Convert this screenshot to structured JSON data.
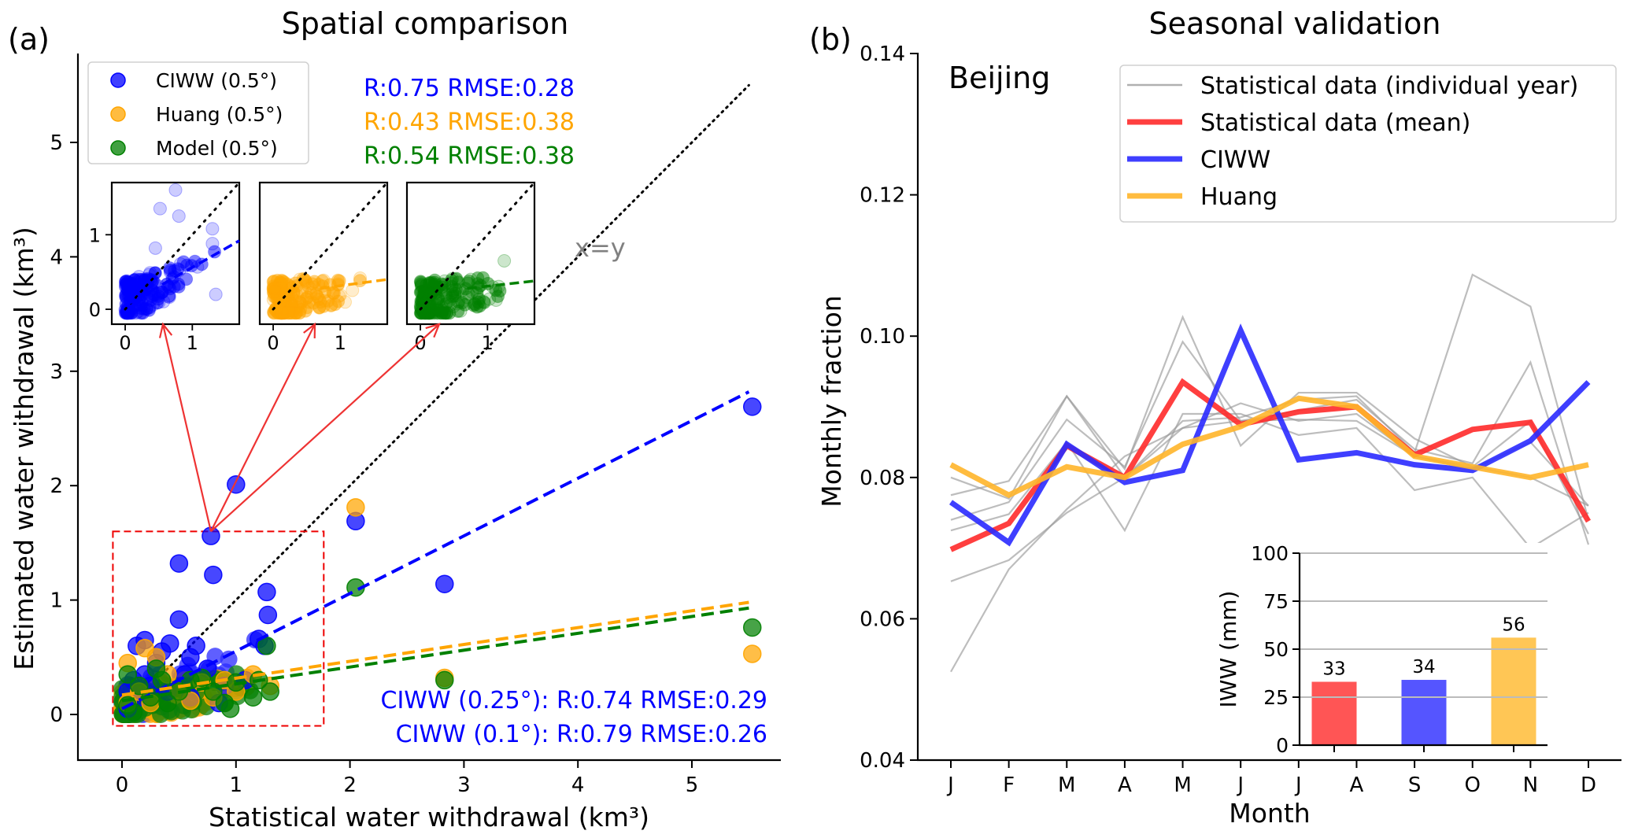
{
  "chart_data": [
    {
      "panel_label": "(a)",
      "type": "scatter",
      "title": "Spatial comparison",
      "xlabel": "Statistical water withdrawal (km³)",
      "ylabel": "Estimated water withdrawal (km³)",
      "xlim": [
        -0.4,
        5.85
      ],
      "ylim": [
        -0.3,
        5.75
      ],
      "xticks": [
        "0",
        "1",
        "2",
        "3",
        "4",
        "5"
      ],
      "yticks": [
        "0",
        "1",
        "2",
        "3",
        "4",
        "5"
      ],
      "legend": {
        "placement": "top-left",
        "entries": [
          {
            "label": "CIWW (0.5°)",
            "color": "#0000ff"
          },
          {
            "label": "Huang (0.5°)",
            "color": "#ffa500"
          },
          {
            "label": "Model (0.5°)",
            "color": "#008000"
          }
        ]
      },
      "stats_top": [
        {
          "text": "R:0.75 RMSE:0.28",
          "color": "#0000ff"
        },
        {
          "text": "R:0.43 RMSE:0.38",
          "color": "#ffa500"
        },
        {
          "text": "R:0.54 RMSE:0.38",
          "color": "#008000"
        }
      ],
      "stats_bottom": [
        {
          "text": "CIWW (0.25°): R:0.74 RMSE:0.29",
          "color": "#0000ff"
        },
        {
          "text": "CIWW (0.1°): R:0.79 RMSE:0.26",
          "color": "#0000ff"
        }
      ],
      "identity_label": "x=y",
      "identity_line": {
        "from": [
          0,
          0
        ],
        "to": [
          5.5,
          5.5
        ]
      },
      "fit_lines": [
        {
          "series": "CIWW",
          "from": [
            0,
            0.05
          ],
          "to": [
            5.5,
            2.82
          ],
          "color": "#0000ff"
        },
        {
          "series": "Huang",
          "from": [
            0,
            0.17
          ],
          "to": [
            5.5,
            0.98
          ],
          "color": "#ffa500"
        },
        {
          "series": "Model",
          "from": [
            0,
            0.12
          ],
          "to": [
            5.5,
            0.93
          ],
          "color": "#008000"
        }
      ],
      "zoom_box": {
        "x": [
          -0.08,
          1.77
        ],
        "y": [
          -0.1,
          1.6
        ]
      },
      "series": [
        {
          "name": "CIWW",
          "color": "#0000ff",
          "points": [
            [
              0.78,
              1.56
            ],
            [
              0.5,
              1.32
            ],
            [
              0.8,
              1.22
            ],
            [
              1.0,
              2.01
            ],
            [
              1.27,
              1.07
            ],
            [
              1.28,
              0.87
            ],
            [
              0.5,
              0.83
            ],
            [
              0.2,
              0.65
            ],
            [
              0.42,
              0.62
            ],
            [
              0.65,
              0.6
            ],
            [
              0.13,
              0.6
            ],
            [
              0.35,
              0.55
            ],
            [
              0.6,
              0.5
            ],
            [
              0.3,
              0.45
            ],
            [
              1.2,
              0.66
            ],
            [
              0.75,
              0.4
            ],
            [
              1.08,
              0.3
            ],
            [
              0.55,
              0.35
            ],
            [
              0.2,
              0.35
            ],
            [
              0.9,
              0.25
            ],
            [
              1.25,
              0.6
            ],
            [
              2.05,
              1.69
            ],
            [
              2.83,
              1.14
            ],
            [
              5.53,
              2.69
            ],
            [
              0.05,
              0.2
            ],
            [
              0.1,
              0.3
            ],
            [
              0.15,
              0.15
            ],
            [
              0.25,
              0.25
            ],
            [
              0.4,
              0.2
            ],
            [
              0.6,
              0.15
            ],
            [
              0.85,
              0.1
            ],
            [
              0.05,
              0.05
            ]
          ]
        },
        {
          "name": "Huang",
          "color": "#ffa500",
          "points": [
            [
              2.05,
              1.81
            ],
            [
              2.83,
              0.32
            ],
            [
              5.53,
              0.53
            ],
            [
              0.2,
              0.58
            ],
            [
              0.3,
              0.5
            ],
            [
              0.05,
              0.45
            ],
            [
              0.4,
              0.35
            ],
            [
              0.7,
              0.28
            ],
            [
              1.0,
              0.2
            ],
            [
              1.3,
              0.25
            ],
            [
              0.6,
              0.12
            ],
            [
              0.9,
              0.3
            ],
            [
              0.15,
              0.2
            ],
            [
              0.5,
              0.2
            ],
            [
              0.25,
              0.1
            ],
            [
              1.15,
              0.35
            ],
            [
              0.8,
              0.15
            ],
            [
              0.05,
              0.1
            ]
          ]
        },
        {
          "name": "Model",
          "color": "#008000",
          "points": [
            [
              2.05,
              1.11
            ],
            [
              2.83,
              0.3
            ],
            [
              5.53,
              0.76
            ],
            [
              1.27,
              0.6
            ],
            [
              0.3,
              0.4
            ],
            [
              0.05,
              0.35
            ],
            [
              0.7,
              0.32
            ],
            [
              1.0,
              0.28
            ],
            [
              1.3,
              0.2
            ],
            [
              0.5,
              0.2
            ],
            [
              0.9,
              0.1
            ],
            [
              0.6,
              0.3
            ],
            [
              0.15,
              0.25
            ],
            [
              0.25,
              0.15
            ],
            [
              0.4,
              0.1
            ],
            [
              1.15,
              0.15
            ],
            [
              0.05,
              0.08
            ],
            [
              0.8,
              0.2
            ],
            [
              0.35,
              0.3
            ],
            [
              1.2,
              0.3
            ],
            [
              0.95,
              0.05
            ],
            [
              0.1,
              0.02
            ]
          ]
        }
      ],
      "insets": [
        {
          "series": "CIWW",
          "color": "#0000ff",
          "xticks": [
            "0",
            "1"
          ],
          "yticks": [
            "0",
            "1"
          ],
          "xlim": [
            -0.2,
            1.7
          ],
          "ylim": [
            -0.2,
            1.7
          ],
          "fit": {
            "from": [
              0,
              0.05
            ],
            "to": [
              1.7,
              0.92
            ]
          }
        },
        {
          "series": "Huang",
          "color": "#ffa500",
          "xticks": [
            "0",
            "1"
          ],
          "xlim": [
            -0.2,
            1.7
          ],
          "ylim": [
            -0.2,
            1.7
          ],
          "fit": {
            "from": [
              0.7,
              0.28
            ],
            "to": [
              1.7,
              0.4
            ]
          }
        },
        {
          "series": "Model",
          "color": "#008000",
          "xticks": [
            "0",
            "1"
          ],
          "xlim": [
            -0.2,
            1.7
          ],
          "ylim": [
            -0.2,
            1.7
          ],
          "fit": {
            "from": [
              0.7,
              0.28
            ],
            "to": [
              1.7,
              0.38
            ]
          }
        }
      ]
    },
    {
      "panel_label": "(b)",
      "type": "line",
      "title": "Seasonal validation",
      "annotation": "Beijing",
      "xlabel": "Month",
      "ylabel": "Monthly fraction",
      "categories": [
        "J",
        "F",
        "M",
        "A",
        "M",
        "J",
        "J",
        "A",
        "S",
        "O",
        "N",
        "D"
      ],
      "ylim": [
        0.04,
        0.14
      ],
      "yticks": [
        "0.04",
        "0.06",
        "0.08",
        "0.10",
        "0.12",
        "0.14"
      ],
      "legend": {
        "placement": "top-right",
        "entries": [
          {
            "label": "Statistical data (individual year)",
            "color": "#b0b0b0"
          },
          {
            "label": "Statistical data (mean)",
            "color": "#ff2a2a"
          },
          {
            "label": "CIWW",
            "color": "#2a2aff"
          },
          {
            "label": "Huang",
            "color": "#ffb52a"
          }
        ]
      },
      "individual_years": [
        [
          0.0775,
          0.0795,
          0.0915,
          0.0812,
          0.1027,
          0.0845,
          0.092,
          0.092,
          0.0855,
          0.0815,
          0.08,
          0.076
        ],
        [
          0.074,
          0.0765,
          0.0882,
          0.0815,
          0.0992,
          0.088,
          0.0895,
          0.091,
          0.084,
          0.082,
          0.0963,
          0.0705
        ],
        [
          0.08,
          0.077,
          0.0915,
          0.08,
          0.087,
          0.0905,
          0.088,
          0.089,
          0.083,
          0.0812,
          0.085,
          0.076
        ],
        [
          0.0725,
          0.0748,
          0.085,
          0.0725,
          0.089,
          0.089,
          0.086,
          0.087,
          0.0782,
          0.08,
          0.07,
          0.075
        ],
        [
          0.0653,
          0.0683,
          0.075,
          0.08,
          0.088,
          0.0885,
          0.091,
          0.0915,
          0.0835,
          0.1087,
          0.1042,
          0.074
        ],
        [
          0.0525,
          0.067,
          0.0755,
          0.083,
          0.087,
          0.088,
          0.0882,
          0.088,
          0.083,
          0.0815,
          0.088,
          0.072
        ]
      ],
      "series": [
        {
          "name": "Statistical data (mean)",
          "color": "#ff2a2a",
          "values": [
            0.0698,
            0.0735,
            0.0845,
            0.08,
            0.0935,
            0.0875,
            0.0893,
            0.09,
            0.0832,
            0.0868,
            0.0878,
            0.0738
          ]
        },
        {
          "name": "CIWW",
          "color": "#2a2aff",
          "values": [
            0.0765,
            0.0708,
            0.0847,
            0.0793,
            0.081,
            0.1008,
            0.0825,
            0.0835,
            0.0818,
            0.081,
            0.0852,
            0.0935
          ]
        },
        {
          "name": "Huang",
          "color": "#ffb52a",
          "values": [
            0.0818,
            0.0775,
            0.0815,
            0.08,
            0.0847,
            0.0872,
            0.0912,
            0.09,
            0.083,
            0.0815,
            0.08,
            0.0818
          ]
        }
      ],
      "inset_bar": {
        "type": "bar",
        "ylabel": "IWW (mm)",
        "ylim": [
          0,
          100
        ],
        "yticks": [
          "0",
          "25",
          "50",
          "75",
          "100"
        ],
        "categories": [
          "Statistical data (mean)",
          "CIWW",
          "Huang"
        ],
        "values": [
          33,
          34,
          56
        ],
        "value_labels": [
          "33",
          "34",
          "56"
        ],
        "colors": [
          "#ff5555",
          "#5555ff",
          "#ffc655"
        ],
        "grid": true
      }
    }
  ]
}
